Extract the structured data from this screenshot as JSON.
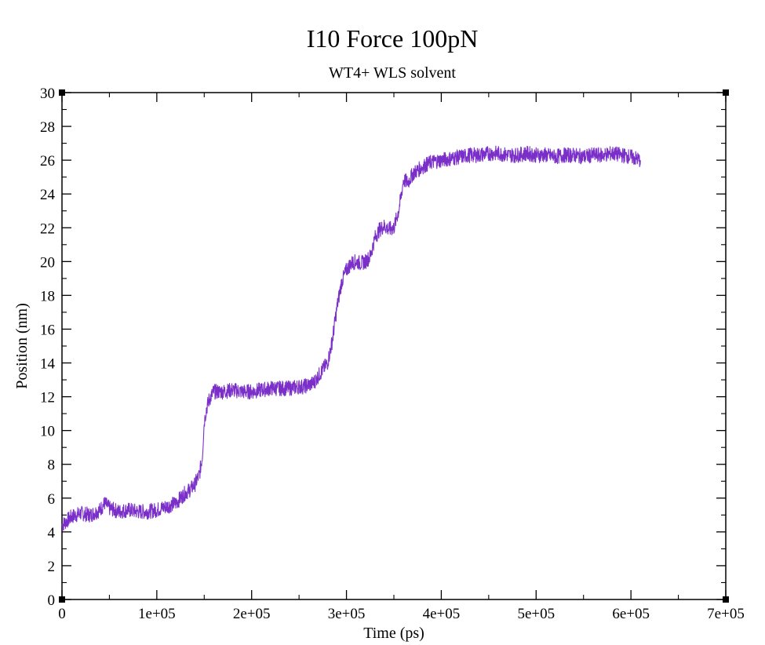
{
  "chart_data": {
    "type": "line",
    "title": "I10 Force 100pN",
    "subtitle": "WT4+ WLS solvent",
    "xlabel": "Time (ps)",
    "ylabel": "Position (nm)",
    "xlim": [
      0,
      700000
    ],
    "ylim": [
      0,
      30
    ],
    "x_ticks": [
      0,
      100000,
      200000,
      300000,
      400000,
      500000,
      600000,
      700000
    ],
    "x_tick_labels": [
      "0",
      "1e+05",
      "2e+05",
      "3e+05",
      "4e+05",
      "5e+05",
      "6e+05",
      "7e+05"
    ],
    "y_ticks": [
      0,
      2,
      4,
      6,
      8,
      10,
      12,
      14,
      16,
      18,
      20,
      22,
      24,
      26,
      28,
      30
    ],
    "y_tick_labels": [
      "0",
      "2",
      "4",
      "6",
      "8",
      "10",
      "12",
      "14",
      "16",
      "18",
      "20",
      "22",
      "24",
      "26",
      "28",
      "30"
    ],
    "grid": false,
    "line_color": "#7b2fc9",
    "series": [
      {
        "x": [
          0,
          10000,
          20000,
          30000,
          40000,
          45000,
          50000,
          60000,
          70000,
          80000,
          90000,
          100000,
          110000,
          120000,
          125000,
          130000,
          135000,
          140000,
          145000,
          148000,
          150000,
          152000,
          155000,
          160000,
          170000,
          180000,
          190000,
          200000,
          210000,
          220000,
          230000,
          240000,
          250000,
          255000,
          260000,
          265000,
          270000,
          275000,
          280000,
          282000,
          285000,
          288000,
          290000,
          295000,
          300000,
          305000,
          310000,
          315000,
          320000,
          325000,
          330000,
          335000,
          340000,
          345000,
          350000,
          355000,
          358000,
          360000,
          365000,
          370000,
          380000,
          390000,
          400000,
          410000,
          420000,
          430000,
          440000,
          450000,
          460000,
          470000,
          480000,
          490000,
          500000,
          510000,
          520000,
          530000,
          540000,
          550000,
          560000,
          570000,
          580000,
          590000,
          600000,
          610000
        ],
        "y": [
          4.4,
          4.9,
          5.1,
          5.0,
          5.3,
          5.7,
          5.4,
          5.2,
          5.3,
          5.2,
          5.2,
          5.3,
          5.5,
          5.7,
          6.0,
          6.3,
          6.5,
          6.8,
          7.4,
          8.5,
          10.5,
          11.2,
          11.8,
          12.3,
          12.3,
          12.4,
          12.3,
          12.3,
          12.4,
          12.5,
          12.5,
          12.5,
          12.6,
          12.6,
          12.7,
          12.8,
          13.2,
          13.6,
          14.0,
          14.5,
          15.3,
          16.5,
          17.3,
          18.8,
          19.5,
          19.9,
          20.0,
          19.9,
          20.0,
          20.3,
          21.4,
          21.9,
          22.1,
          21.9,
          22.0,
          23.0,
          24.0,
          24.8,
          24.7,
          25.2,
          25.6,
          25.9,
          26.0,
          26.1,
          26.2,
          26.3,
          26.3,
          26.4,
          26.4,
          26.3,
          26.3,
          26.4,
          26.3,
          26.3,
          26.2,
          26.3,
          26.3,
          26.2,
          26.3,
          26.3,
          26.4,
          26.3,
          26.2,
          26.0
        ]
      }
    ]
  }
}
